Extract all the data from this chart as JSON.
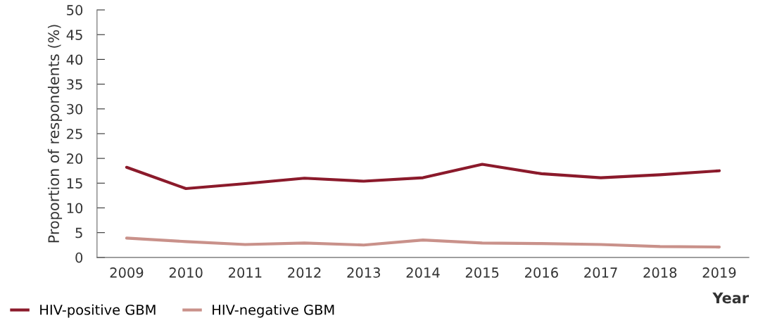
{
  "chart_data": {
    "type": "line",
    "xlabel": "Year",
    "ylabel": "Proportion of respondents (%)",
    "categories": [
      "2009",
      "2010",
      "2011",
      "2012",
      "2013",
      "2014",
      "2015",
      "2016",
      "2017",
      "2018",
      "2019"
    ],
    "series": [
      {
        "name": "HIV-positive GBM",
        "color": "#8b1a2b",
        "values": [
          18.2,
          13.9,
          14.9,
          16.0,
          15.4,
          16.1,
          18.8,
          16.9,
          16.1,
          16.7,
          17.5
        ]
      },
      {
        "name": "HIV-negative GBM",
        "color": "#c9918a",
        "values": [
          3.9,
          3.2,
          2.6,
          2.9,
          2.5,
          3.5,
          2.9,
          2.8,
          2.6,
          2.2,
          2.1
        ]
      }
    ],
    "ylim": [
      0,
      50
    ],
    "yticks": [
      0,
      5,
      10,
      15,
      20,
      25,
      30,
      35,
      40,
      45,
      50
    ],
    "grid": false,
    "legend": "bottom left",
    "marker": "none",
    "line_style": "solid"
  }
}
